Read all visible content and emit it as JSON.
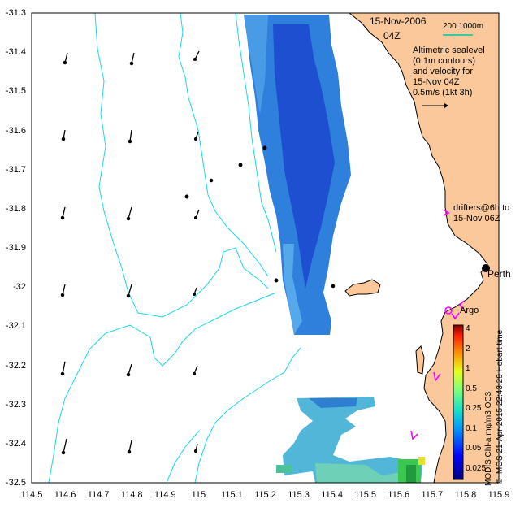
{
  "header": {
    "date": "15-Nov-2006",
    "time": "04Z",
    "scale_label": "200  1000m"
  },
  "legend": {
    "line1": "Altimetric sealevel",
    "line2": "(0.1m contours)",
    "line3": "and velocity for",
    "line4": "15-Nov 04Z",
    "line5": "0.5m/s (1kt 3h)"
  },
  "drifters": {
    "line1": "drifters@6h to",
    "line2": "15-Nov 06Z",
    "argo_label": "Argo"
  },
  "places": {
    "perth": "Perth"
  },
  "axes": {
    "y_ticks": [
      "-31.3",
      "-31.4",
      "-31.5",
      "-31.6",
      "-31.7",
      "-31.8",
      "-31.9",
      "-32",
      "-32.1",
      "-32.2",
      "-32.3",
      "-32.4",
      "-32.5"
    ],
    "x_ticks": [
      "114.5",
      "114.6",
      "114.7",
      "114.8",
      "114.9",
      "115",
      "115.1",
      "115.2",
      "115.3",
      "115.4",
      "115.5",
      "115.6",
      "115.7",
      "115.8",
      "115.9"
    ]
  },
  "colorbar": {
    "ticks": [
      "4",
      "2",
      "1",
      "0.5",
      "0.25",
      "0.1",
      "0.05",
      "0.025"
    ],
    "label": "MODIS Chl-a mg/m3 OC3"
  },
  "credit": "© IMOS 21-Apr-2015 22:43:29 Hobart time",
  "colors": {
    "land": "#fac89a",
    "contour": "#19d7e8",
    "drifter": "#ff00ff",
    "scale_bar": "#3cc8a0"
  }
}
